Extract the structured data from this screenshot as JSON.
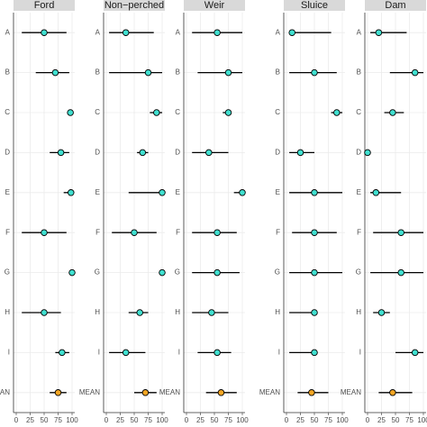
{
  "chart_data": [
    {
      "type": "dot",
      "title": "Ford",
      "categories": [
        "A",
        "B",
        "C",
        "D",
        "E",
        "F",
        "G",
        "H",
        "I",
        "MEAN"
      ],
      "values": [
        50,
        70,
        97,
        80,
        98,
        50,
        100,
        50,
        82,
        75
      ],
      "lows": [
        10,
        35,
        95,
        60,
        85,
        10,
        98,
        10,
        70,
        60
      ],
      "highs": [
        90,
        95,
        100,
        95,
        100,
        90,
        100,
        80,
        95,
        90
      ],
      "colors": [
        "#40e0d0",
        "#40e0d0",
        "#40e0d0",
        "#40e0d0",
        "#40e0d0",
        "#40e0d0",
        "#40e0d0",
        "#40e0d0",
        "#40e0d0",
        "#f5a623"
      ],
      "xlim": [
        0,
        100
      ],
      "xticks": [
        0,
        25,
        50,
        75,
        100
      ],
      "grid": true
    },
    {
      "type": "dot",
      "title": "Non−perched",
      "categories": [
        "A",
        "B",
        "C",
        "D",
        "E",
        "F",
        "G",
        "H",
        "I",
        "MEAN"
      ],
      "values": [
        35,
        75,
        90,
        65,
        100,
        50,
        100,
        60,
        35,
        70
      ],
      "lows": [
        5,
        5,
        78,
        55,
        40,
        10,
        100,
        40,
        5,
        50
      ],
      "highs": [
        85,
        100,
        100,
        75,
        100,
        90,
        100,
        75,
        70,
        90
      ],
      "colors": [
        "#40e0d0",
        "#40e0d0",
        "#40e0d0",
        "#40e0d0",
        "#40e0d0",
        "#40e0d0",
        "#40e0d0",
        "#40e0d0",
        "#40e0d0",
        "#f5a623"
      ],
      "xlim": [
        0,
        100
      ],
      "xticks": [
        0,
        25,
        50,
        75,
        100
      ],
      "grid": true
    },
    {
      "type": "dot",
      "title": "Weir",
      "categories": [
        "A",
        "B",
        "C",
        "D",
        "E",
        "F",
        "G",
        "H",
        "I",
        "MEAN"
      ],
      "values": [
        55,
        75,
        75,
        40,
        100,
        55,
        55,
        45,
        55,
        62
      ],
      "lows": [
        10,
        20,
        65,
        10,
        85,
        10,
        10,
        10,
        20,
        35
      ],
      "highs": [
        100,
        100,
        80,
        75,
        100,
        90,
        95,
        75,
        80,
        90
      ],
      "colors": [
        "#40e0d0",
        "#40e0d0",
        "#40e0d0",
        "#40e0d0",
        "#40e0d0",
        "#40e0d0",
        "#40e0d0",
        "#40e0d0",
        "#40e0d0",
        "#f5a623"
      ],
      "xlim": [
        0,
        100
      ],
      "xticks": [
        0,
        25,
        50,
        75,
        100
      ],
      "grid": true
    },
    {
      "type": "dot",
      "title": "Sluice",
      "categories": [
        "A",
        "B",
        "C",
        "D",
        "E",
        "F",
        "G",
        "H",
        "I",
        "MEAN"
      ],
      "values": [
        10,
        50,
        90,
        25,
        50,
        50,
        50,
        50,
        50,
        45
      ],
      "lows": [
        5,
        5,
        80,
        5,
        5,
        10,
        5,
        5,
        5,
        20
      ],
      "highs": [
        80,
        90,
        100,
        50,
        100,
        90,
        100,
        55,
        55,
        75
      ],
      "colors": [
        "#40e0d0",
        "#40e0d0",
        "#40e0d0",
        "#40e0d0",
        "#40e0d0",
        "#40e0d0",
        "#40e0d0",
        "#40e0d0",
        "#40e0d0",
        "#f5a623"
      ],
      "xlim": [
        0,
        100
      ],
      "xticks": [
        0,
        25,
        50,
        75,
        100
      ],
      "grid": true
    },
    {
      "type": "dot",
      "title": "Dam",
      "categories": [
        "A",
        "B",
        "C",
        "D",
        "E",
        "F",
        "G",
        "H",
        "I",
        "MEAN"
      ],
      "values": [
        20,
        85,
        45,
        0,
        15,
        60,
        60,
        25,
        85,
        45
      ],
      "lows": [
        5,
        40,
        30,
        0,
        5,
        10,
        5,
        10,
        50,
        20
      ],
      "highs": [
        70,
        100,
        65,
        5,
        60,
        100,
        100,
        40,
        100,
        80
      ],
      "colors": [
        "#40e0d0",
        "#40e0d0",
        "#40e0d0",
        "#40e0d0",
        "#40e0d0",
        "#40e0d0",
        "#40e0d0",
        "#40e0d0",
        "#40e0d0",
        "#f5a623"
      ],
      "xlim": [
        0,
        100
      ],
      "xticks": [
        0,
        25,
        50,
        75,
        100
      ],
      "grid": true
    }
  ]
}
